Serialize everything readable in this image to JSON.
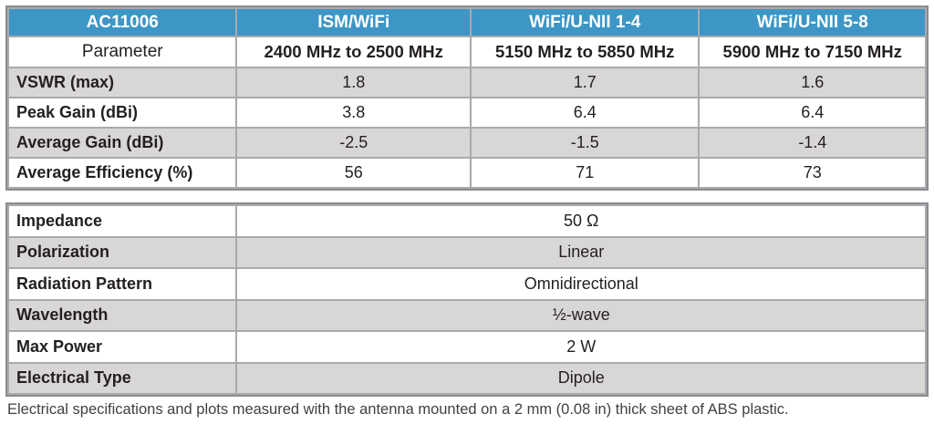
{
  "table1": {
    "header": [
      "AC11006",
      "ISM/WiFi",
      "WiFi/U-NII 1-4",
      "WiFi/U-NII 5-8"
    ],
    "parameter_row": [
      "Parameter",
      "2400 MHz to 2500 MHz",
      "5150 MHz to 5850 MHz",
      "5900 MHz to 7150 MHz"
    ],
    "rows": [
      {
        "label": "VSWR (max)",
        "values": [
          "1.8",
          "1.7",
          "1.6"
        ]
      },
      {
        "label": "Peak Gain (dBi)",
        "values": [
          "3.8",
          "6.4",
          "6.4"
        ]
      },
      {
        "label": "Average Gain (dBi)",
        "values": [
          "-2.5",
          "-1.5",
          "-1.4"
        ]
      },
      {
        "label": "Average Efficiency (%)",
        "values": [
          "56",
          "71",
          "73"
        ]
      }
    ]
  },
  "table2": {
    "rows": [
      {
        "label": "Impedance",
        "value": "50 Ω"
      },
      {
        "label": "Polarization",
        "value": "Linear"
      },
      {
        "label": "Radiation Pattern",
        "value": "Omnidirectional"
      },
      {
        "label": "Wavelength",
        "value": "½-wave"
      },
      {
        "label": "Max Power",
        "value": "2 W"
      },
      {
        "label": "Electrical Type",
        "value": "Dipole"
      }
    ]
  },
  "footnote": "Electrical specifications and plots measured with the antenna mounted on a 2 mm (0.08 in) thick sheet of ABS plastic.",
  "colors": {
    "header_bg": "#3D96C6",
    "row_alt": "#D8D7D5",
    "border_outer": "#8A8C8F",
    "border_inner": "#A8AAAD",
    "text_main": "#231F20",
    "text_foot": "#414042"
  }
}
